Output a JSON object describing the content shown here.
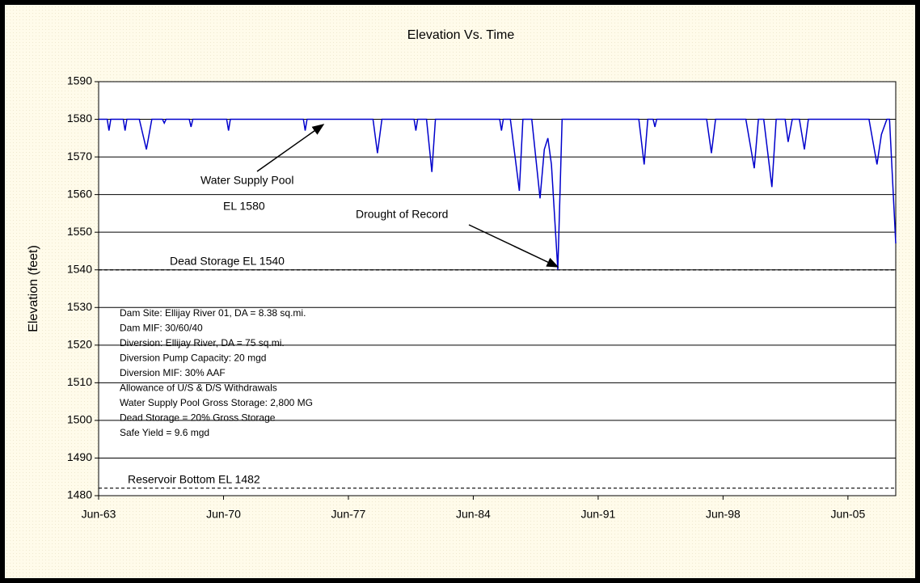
{
  "chart_data": {
    "type": "line",
    "title": "Elevation Vs. Time",
    "y_label": "Elevation (feet)",
    "xlim": [
      1963.42,
      2008.1
    ],
    "xticks": [
      {
        "value": 1963.42,
        "label": "Jun-63"
      },
      {
        "value": 1970.42,
        "label": "Jun-70"
      },
      {
        "value": 1977.42,
        "label": "Jun-77"
      },
      {
        "value": 1984.42,
        "label": "Jun-84"
      },
      {
        "value": 1991.42,
        "label": "Jun-91"
      },
      {
        "value": 1998.42,
        "label": "Jun-98"
      },
      {
        "value": 2005.42,
        "label": "Jun-05"
      }
    ],
    "ylim": [
      1480,
      1590
    ],
    "yticks": [
      1480,
      1490,
      1500,
      1510,
      1520,
      1530,
      1540,
      1550,
      1560,
      1570,
      1580,
      1590
    ],
    "grid": true,
    "series": [
      {
        "color": "#0000cc",
        "x": [
          1963.42,
          1963.9,
          1964.0,
          1964.1,
          1964.8,
          1964.9,
          1965.0,
          1965.7,
          1966.1,
          1966.4,
          1967.0,
          1967.1,
          1967.2,
          1968.5,
          1968.6,
          1968.7,
          1970.6,
          1970.7,
          1970.8,
          1974.9,
          1975.0,
          1975.1,
          1978.8,
          1979.05,
          1979.3,
          1981.1,
          1981.2,
          1981.3,
          1981.8,
          1982.1,
          1982.3,
          1985.9,
          1986.0,
          1986.1,
          1986.5,
          1987.0,
          1987.2,
          1987.7,
          1988.16,
          1988.4,
          1988.6,
          1988.8,
          1989.16,
          1989.4,
          1993.7,
          1994.0,
          1994.2,
          1994.5,
          1994.6,
          1994.7,
          1997.5,
          1997.77,
          1998.0,
          1999.7,
          2000.17,
          2000.4,
          2000.7,
          2001.16,
          2001.4,
          2001.9,
          2002.07,
          2002.3,
          2002.7,
          2002.98,
          2003.2,
          2006.6,
          2007.05,
          2007.3,
          2007.6,
          2007.75,
          2008.1
        ],
        "values": [
          1580,
          1580,
          1577,
          1580,
          1580,
          1577,
          1580,
          1580,
          1572,
          1580,
          1580,
          1579,
          1580,
          1580,
          1578,
          1580,
          1580,
          1577,
          1580,
          1580,
          1577,
          1580,
          1580,
          1571,
          1580,
          1580,
          1577,
          1580,
          1580,
          1566,
          1580,
          1580,
          1577,
          1580,
          1580,
          1561,
          1580,
          1580,
          1559,
          1572,
          1575,
          1568,
          1540,
          1580,
          1580,
          1568,
          1580,
          1580,
          1578,
          1580,
          1580,
          1571,
          1580,
          1580,
          1567,
          1580,
          1580,
          1562,
          1580,
          1580,
          1574,
          1580,
          1580,
          1572,
          1580,
          1580,
          1568,
          1576,
          1580,
          1580,
          1547
        ]
      }
    ],
    "reference_lines": [
      {
        "value": 1540,
        "label": "Dead Storage EL 1540"
      },
      {
        "value": 1482,
        "label": "Reservoir Bottom EL 1482"
      }
    ],
    "annotations": [
      "Water Supply Pool",
      "EL 1580",
      "Drought of Record"
    ],
    "notes": [
      "Dam Site: Ellijay River 01, DA = 8.38 sq.mi.",
      "Dam MIF: 30/60/40",
      "Diversion: Ellijay River, DA = 75 sq.mi.",
      "Diversion Pump Capacity: 20 mgd",
      "Diversion MIF: 30% AAF",
      "Allowance of U/S & D/S Withdrawals",
      "Water Supply Pool Gross Storage: 2,800 MG",
      "Dead Storage = 20% Gross Storage",
      "Safe Yield = 9.6 mgd"
    ]
  }
}
